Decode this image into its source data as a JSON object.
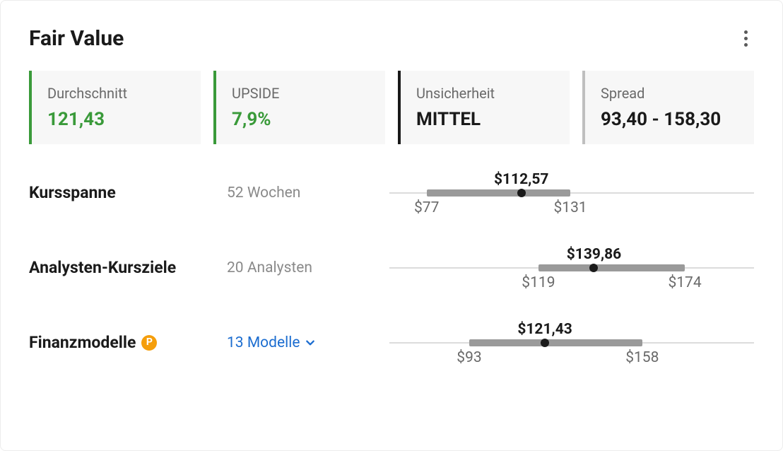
{
  "title": "Fair Value",
  "colors": {
    "green": "#3a9a3a",
    "dark": "#1a1a1a",
    "grayBorder": "#bfbfbf",
    "link": "#1c6dd0",
    "badgeBg": "#f59e0b"
  },
  "stats": [
    {
      "label": "Durchschnitt",
      "value": "121,43",
      "valueColor": "#3a9a3a",
      "accent": "#3a9a3a"
    },
    {
      "label": "UPSIDE",
      "value": "7,9%",
      "valueColor": "#3a9a3a",
      "accent": "#3a9a3a"
    },
    {
      "label": "Unsicherheit",
      "value": "MITTEL",
      "valueColor": "#1a1a1a",
      "accent": "#1a1a1a"
    },
    {
      "label": "Spread",
      "value": "93,40 - 158,30",
      "valueColor": "#1a1a1a",
      "accent": "#bfbfbf"
    }
  ],
  "rows": [
    {
      "label": "Kursspanne",
      "sub": "52 Wochen",
      "subLink": false,
      "badge": null,
      "range": {
        "track_lo": 63,
        "track_hi": 200,
        "lo": 77,
        "hi": 131,
        "dot": 112.57,
        "lo_label": "$77",
        "hi_label": "$131",
        "dot_label": "$112,57"
      }
    },
    {
      "label": "Analysten-Kursziele",
      "sub": "20 Analysten",
      "subLink": false,
      "badge": null,
      "range": {
        "track_lo": 63,
        "track_hi": 200,
        "lo": 119,
        "hi": 174,
        "dot": 139.86,
        "lo_label": "$119",
        "hi_label": "$174",
        "dot_label": "$139,86"
      }
    },
    {
      "label": "Finanzmodelle",
      "sub": "13 Modelle",
      "subLink": true,
      "badge": "P",
      "range": {
        "track_lo": 63,
        "track_hi": 200,
        "lo": 93,
        "hi": 158,
        "dot": 121.43,
        "lo_label": "$93",
        "hi_label": "$158",
        "dot_label": "$121,43"
      }
    }
  ]
}
